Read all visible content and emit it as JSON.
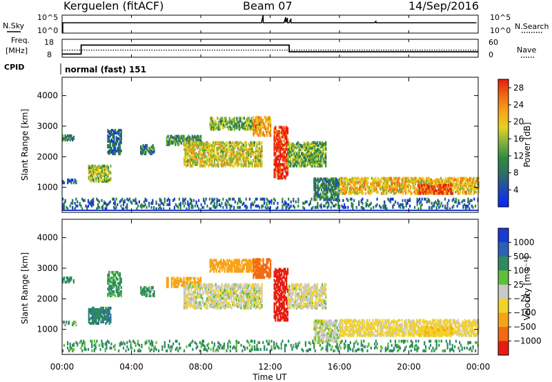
{
  "header": {
    "station": "Kerguelen (fitACF)",
    "beam": "Beam 07",
    "date": "14/Sep/2016"
  },
  "noise_panel": {
    "left_label": "N.Sky",
    "right_label": "N.Search",
    "left_ticks": [
      "10^5",
      "10^0"
    ],
    "right_ticks": [
      "10^5",
      "10^0"
    ]
  },
  "freq_panel": {
    "left_label_line1": "Freq.",
    "left_label_line2": "[MHz]",
    "right_label": "Nave",
    "left_ticks": [
      "18",
      "8"
    ],
    "right_ticks": [
      "60",
      "0"
    ],
    "cpid_label": "CPID",
    "mode_text": "normal (fast) 151",
    "freq_mhz": [
      {
        "t": 0,
        "v": 9.2
      },
      {
        "t": 1.1,
        "v": 9.2
      },
      {
        "t": 1.1,
        "v": 15.1
      },
      {
        "t": 13.1,
        "v": 15.1
      },
      {
        "t": 13.1,
        "v": 10.7
      },
      {
        "t": 24,
        "v": 10.7
      }
    ],
    "nave": [
      {
        "t": 0,
        "v": 23
      },
      {
        "t": 24,
        "v": 23
      }
    ]
  },
  "power_panel": {
    "ylabel": "Slant Range [km]",
    "yticks": [
      "4000",
      "3000",
      "2000",
      "1000"
    ],
    "colorbar_label": "Power [dB]",
    "colorbar_ticks": [
      "28",
      "24",
      "20",
      "16",
      "12",
      "8",
      "4"
    ],
    "colors": [
      "#0a24ff",
      "#1a44c0",
      "#2e6b6b",
      "#2e8a3e",
      "#7db041",
      "#e3d320",
      "#f7a31a",
      "#f26a12",
      "#e61e10"
    ]
  },
  "velocity_panel": {
    "ylabel": "Slant Range [km]",
    "yticks": [
      "4000",
      "3000",
      "2000",
      "1000"
    ],
    "colorbar_label": "Velocity [m s⁻¹]",
    "colorbar_ticks": [
      "1000",
      "500",
      "100",
      "25",
      "−25",
      "−100",
      "−500",
      "−1000"
    ],
    "colors": [
      "#1a3ad6",
      "#2b62b5",
      "#2e8a62",
      "#5fbf3b",
      "#c9c9c9",
      "#f2d22a",
      "#f7a31a",
      "#f26a12",
      "#e61e10"
    ]
  },
  "xaxis": {
    "label": "Time UT",
    "ticks": [
      "00:00",
      "04:00",
      "08:00",
      "12:00",
      "16:00",
      "20:00",
      "00:00"
    ]
  },
  "chart_data": {
    "type": "heatmap",
    "title": "Kerguelen (fitACF) Beam 07 14/Sep/2016",
    "xlabel": "Time UT",
    "ylabel": "Slant Range [km]",
    "xlim": [
      0,
      24
    ],
    "ylim": [
      180,
      4600
    ],
    "power_zlim_db": [
      0,
      30
    ],
    "velocity_zlim": [
      -1000,
      1000
    ],
    "echo_regions": [
      {
        "t0": 0.0,
        "t1": 0.7,
        "r0": 2550,
        "r1": 2700,
        "power_db": 10,
        "velocity": 60
      },
      {
        "t0": 0.0,
        "t1": 0.8,
        "r0": 1150,
        "r1": 1250,
        "power_db": 8,
        "velocity": 20
      },
      {
        "t0": 0.0,
        "t1": 24.0,
        "r0": 300,
        "r1": 650,
        "power_db": 8,
        "velocity": 40
      },
      {
        "t0": 1.5,
        "t1": 2.8,
        "r0": 1200,
        "r1": 1700,
        "power_db": 16,
        "velocity": 80
      },
      {
        "t0": 2.6,
        "t1": 3.4,
        "r0": 2100,
        "r1": 2900,
        "power_db": 8,
        "velocity": 40
      },
      {
        "t0": 4.5,
        "t1": 5.3,
        "r0": 2100,
        "r1": 2400,
        "power_db": 10,
        "velocity": 30
      },
      {
        "t0": 6.0,
        "t1": 8.0,
        "r0": 2400,
        "r1": 2700,
        "power_db": 12,
        "velocity": -120
      },
      {
        "t0": 7.0,
        "t1": 11.5,
        "r0": 1700,
        "r1": 2500,
        "power_db": 18,
        "velocity": -15
      },
      {
        "t0": 8.5,
        "t1": 11.5,
        "r0": 2900,
        "r1": 3300,
        "power_db": 14,
        "velocity": -150
      },
      {
        "t0": 11.0,
        "t1": 12.0,
        "r0": 2700,
        "r1": 3300,
        "power_db": 22,
        "velocity": -400
      },
      {
        "t0": 12.2,
        "t1": 13.0,
        "r0": 1300,
        "r1": 3000,
        "power_db": 28,
        "velocity": -600
      },
      {
        "t0": 13.0,
        "t1": 15.2,
        "r0": 1700,
        "r1": 2500,
        "power_db": 14,
        "velocity": -20
      },
      {
        "t0": 14.5,
        "t1": 16.0,
        "r0": 600,
        "r1": 1300,
        "power_db": 10,
        "velocity": -10
      },
      {
        "t0": 16.0,
        "t1": 24.0,
        "r0": 800,
        "r1": 1300,
        "power_db": 20,
        "velocity": -40
      },
      {
        "t0": 20.5,
        "t1": 22.5,
        "r0": 800,
        "r1": 1100,
        "power_db": 27,
        "velocity": -80
      }
    ]
  }
}
